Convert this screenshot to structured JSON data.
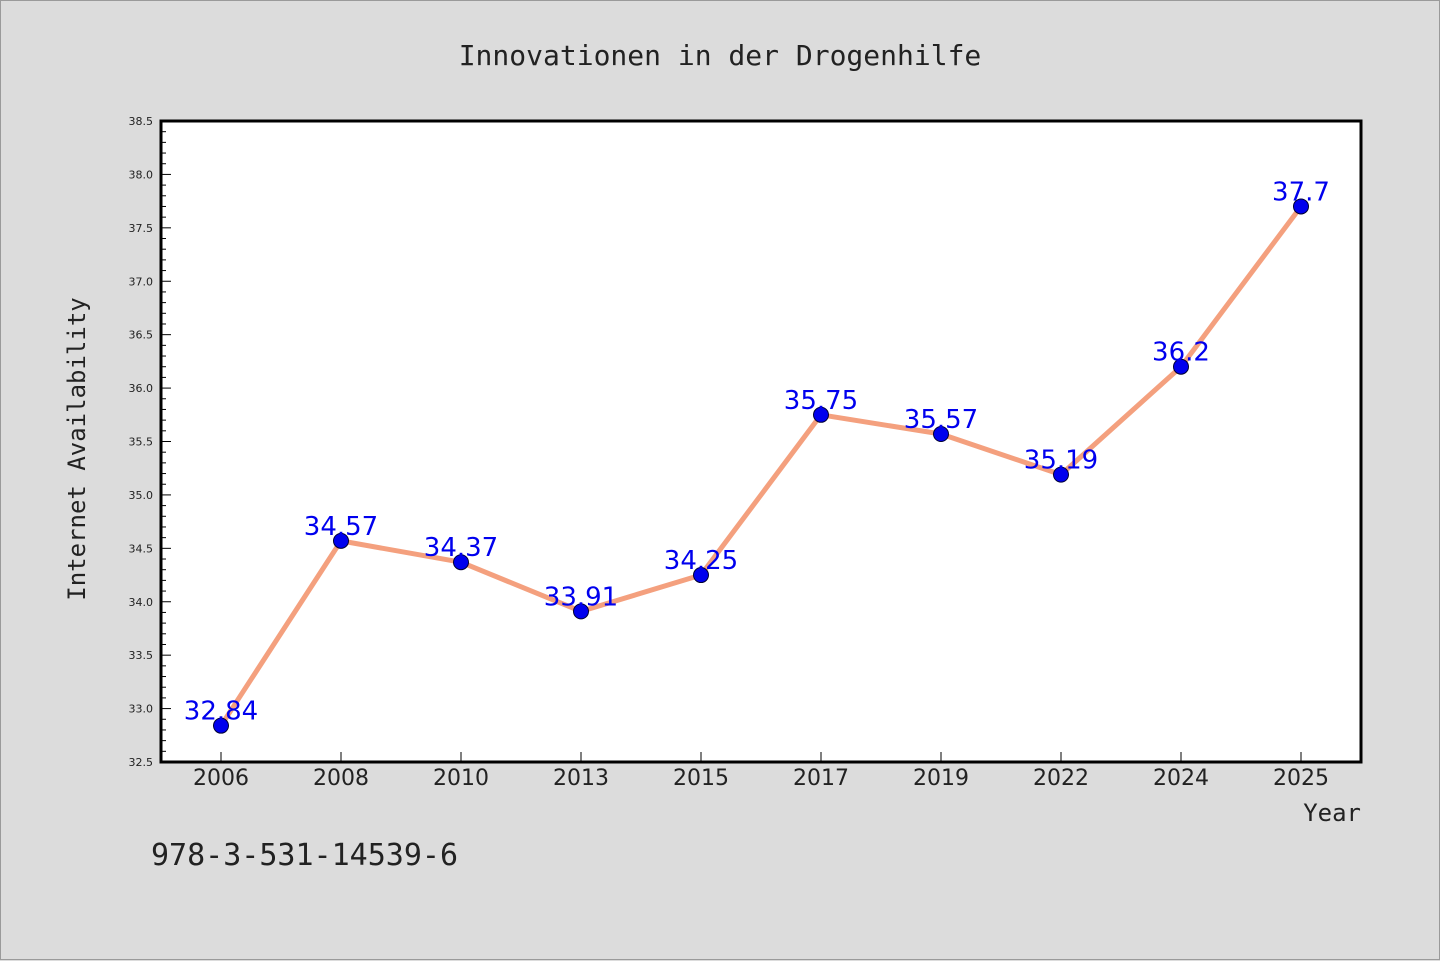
{
  "chart_data": {
    "type": "line",
    "title": "Innovationen in der Drogenhilfe",
    "xlabel": "Year",
    "ylabel": "Internet Availability",
    "categories": [
      "2006",
      "2008",
      "2010",
      "2013",
      "2015",
      "2017",
      "2019",
      "2022",
      "2024",
      "2025"
    ],
    "series": [
      {
        "values": [
          32.84,
          34.57,
          34.37,
          33.91,
          34.25,
          35.75,
          35.57,
          35.19,
          36.2,
          37.7
        ],
        "labels": [
          "32.84",
          "34.57",
          "34.37",
          "33.91",
          "34.25",
          "35.75",
          "35.57",
          "35.19",
          "36.2",
          "37.7"
        ],
        "line_color": "#f4a07e",
        "marker_color": "#0000ee",
        "label_color": "#0000ee"
      }
    ],
    "ylim": [
      32.5,
      38.5
    ],
    "yticks": [
      "32.5",
      "33.0",
      "33.5",
      "34.0",
      "34.5",
      "35.0",
      "35.5",
      "36.0",
      "36.5",
      "37.0",
      "37.5",
      "38.0",
      "38.5"
    ],
    "grid": false,
    "legend": "none"
  },
  "isbn": "978-3-531-14539-6",
  "colors": {
    "background": "#dcdcdc",
    "plot_background": "#ffffff",
    "axes": "#000000",
    "text": "#222222"
  }
}
